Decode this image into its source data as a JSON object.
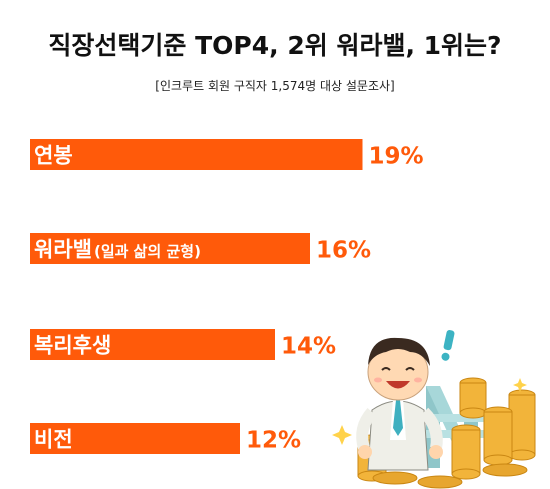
{
  "chart_data": {
    "type": "bar",
    "orientation": "horizontal",
    "title": "직장선택기준 TOP4, 2위 워라밸, 1위는?",
    "subtitle": "[인크루트 회원 구직자 1,574명 대상 설문조사]",
    "categories": [
      "연봉",
      "워라밸(일과 삶의 균형)",
      "복리후생",
      "비전"
    ],
    "category_labels": [
      {
        "main": "연봉",
        "sub": ""
      },
      {
        "main": "워라밸",
        "sub": "(일과 삶의 균형)"
      },
      {
        "main": "복리후생",
        "sub": ""
      },
      {
        "main": "비전",
        "sub": ""
      }
    ],
    "values": [
      19,
      16,
      14,
      12
    ],
    "value_labels": [
      "19%",
      "16%",
      "14%",
      "12%"
    ],
    "unit": "%",
    "grid": false,
    "legend": "none"
  },
  "colors": {
    "bar": "#ff5a0a",
    "value_text": "#ff5a0a",
    "title_text": "#111111"
  },
  "illustration": {
    "icon": "businessman-with-won-coins-icon"
  }
}
